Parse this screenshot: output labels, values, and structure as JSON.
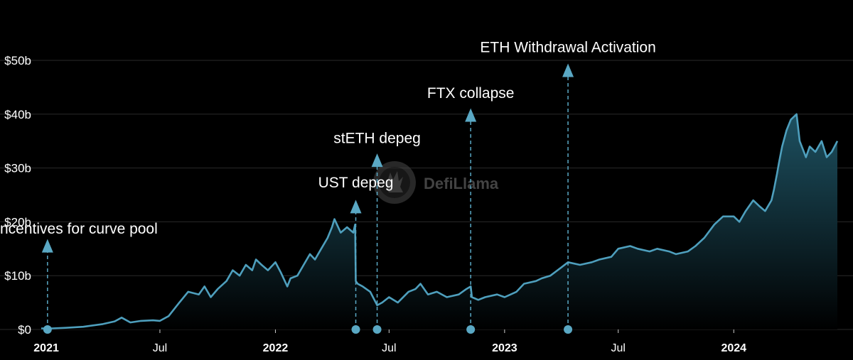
{
  "chart_data": {
    "type": "area",
    "title": "",
    "xlabel": "",
    "ylabel": "",
    "watermark": "DefiLlama",
    "x_range": [
      "2020-12-24",
      "2024-06-14"
    ],
    "ylim": [
      0,
      52
    ],
    "y_unit": "billions USD",
    "grid": true,
    "legend": "none",
    "colors": {
      "line": "#4e9fbd",
      "area_top": "#1f5566",
      "area_bottom": "#000000",
      "grid": "#2a2a2a",
      "marker": "#5aa8c4",
      "background": "#000000"
    },
    "y_ticks": [
      {
        "value": 0,
        "label": "$0"
      },
      {
        "value": 10,
        "label": "$10b"
      },
      {
        "value": 20,
        "label": "$20b"
      },
      {
        "value": 30,
        "label": "$30b"
      },
      {
        "value": 40,
        "label": "$40b"
      },
      {
        "value": 50,
        "label": "$50b"
      }
    ],
    "x_ticks": [
      {
        "date": "2021-01-01",
        "label": "2021",
        "bold": true
      },
      {
        "date": "2021-07-01",
        "label": "Jul",
        "bold": false
      },
      {
        "date": "2022-01-01",
        "label": "2022",
        "bold": true
      },
      {
        "date": "2022-07-01",
        "label": "Jul",
        "bold": false
      },
      {
        "date": "2023-01-01",
        "label": "2023",
        "bold": true
      },
      {
        "date": "2023-07-01",
        "label": "Jul",
        "bold": false
      },
      {
        "date": "2024-01-01",
        "label": "2024",
        "bold": true
      }
    ],
    "series": [
      {
        "x": [
          "2020-12-24",
          "2021-01-10",
          "2021-02-01",
          "2021-03-01",
          "2021-04-01",
          "2021-04-20",
          "2021-05-01",
          "2021-05-15",
          "2021-06-01",
          "2021-06-20",
          "2021-07-01",
          "2021-07-15",
          "2021-08-01",
          "2021-08-15",
          "2021-09-01",
          "2021-09-10",
          "2021-09-20",
          "2021-10-01",
          "2021-10-15",
          "2021-10-25",
          "2021-11-05",
          "2021-11-15",
          "2021-11-25",
          "2021-12-01",
          "2021-12-10",
          "2021-12-20",
          "2022-01-01",
          "2022-01-10",
          "2022-01-20",
          "2022-01-25",
          "2022-02-05",
          "2022-02-15",
          "2022-02-25",
          "2022-03-05",
          "2022-03-15",
          "2022-03-25",
          "2022-04-01",
          "2022-04-05",
          "2022-04-15",
          "2022-04-25",
          "2022-05-05",
          "2022-05-08",
          "2022-05-09",
          "2022-05-12",
          "2022-05-20",
          "2022-06-01",
          "2022-06-12",
          "2022-06-20",
          "2022-07-01",
          "2022-07-15",
          "2022-08-01",
          "2022-08-12",
          "2022-08-20",
          "2022-09-01",
          "2022-09-15",
          "2022-10-01",
          "2022-10-20",
          "2022-11-01",
          "2022-11-08",
          "2022-11-10",
          "2022-11-20",
          "2022-12-01",
          "2022-12-20",
          "2023-01-01",
          "2023-01-20",
          "2023-02-01",
          "2023-02-20",
          "2023-03-01",
          "2023-03-15",
          "2023-04-01",
          "2023-04-12",
          "2023-05-01",
          "2023-05-20",
          "2023-06-01",
          "2023-06-20",
          "2023-07-01",
          "2023-07-20",
          "2023-08-01",
          "2023-08-20",
          "2023-09-01",
          "2023-09-20",
          "2023-10-01",
          "2023-10-20",
          "2023-11-01",
          "2023-11-15",
          "2023-12-01",
          "2023-12-15",
          "2024-01-01",
          "2024-01-10",
          "2024-01-20",
          "2024-02-01",
          "2024-02-10",
          "2024-02-20",
          "2024-03-01",
          "2024-03-05",
          "2024-03-10",
          "2024-03-13",
          "2024-03-18",
          "2024-03-25",
          "2024-04-01",
          "2024-04-10",
          "2024-04-15",
          "2024-04-25",
          "2024-05-01",
          "2024-05-10",
          "2024-05-20",
          "2024-05-28",
          "2024-06-05",
          "2024-06-14"
        ],
        "y": [
          0.2,
          0.2,
          0.3,
          0.5,
          1.0,
          1.5,
          2.2,
          1.3,
          1.6,
          1.7,
          1.6,
          2.5,
          5.0,
          7.0,
          6.5,
          8.0,
          6.0,
          7.5,
          9.0,
          11.0,
          10.0,
          12.0,
          11.0,
          13.0,
          12.0,
          11.0,
          12.5,
          10.5,
          8.0,
          9.5,
          10.0,
          12.0,
          14.0,
          13.0,
          15.0,
          17.0,
          19.0,
          20.5,
          18.0,
          19.0,
          18.0,
          19.5,
          9.0,
          8.5,
          8.0,
          7.0,
          4.5,
          5.0,
          6.0,
          5.0,
          7.0,
          7.5,
          8.5,
          6.5,
          7.0,
          6.0,
          6.5,
          7.5,
          8.0,
          6.0,
          5.5,
          6.0,
          6.5,
          6.0,
          7.0,
          8.5,
          9.0,
          9.5,
          10.0,
          11.5,
          12.5,
          12.0,
          12.5,
          13.0,
          13.5,
          15.0,
          15.5,
          15.0,
          14.5,
          15.0,
          14.5,
          14.0,
          14.5,
          15.5,
          17.0,
          19.5,
          21.0,
          21.0,
          20.0,
          22.0,
          24.0,
          23.0,
          22.0,
          24.0,
          26.0,
          29.0,
          31.0,
          34.0,
          37.0,
          39.0,
          40.0,
          35.0,
          32.0,
          34.0,
          33.0,
          35.0,
          32.0,
          33.0,
          35.0
        ]
      }
    ],
    "annotations": [
      {
        "label": "ncentives for curve pool",
        "date": "2021-01-03",
        "arrow_top_value": 16.8,
        "label_value": 17.8
      },
      {
        "label": "UST depeg",
        "date": "2022-05-09",
        "arrow_top_value": 24.1,
        "label_value": 26.4
      },
      {
        "label": "stETH depeg",
        "date": "2022-06-12",
        "arrow_top_value": 32.7,
        "label_value": 34.6
      },
      {
        "label": "FTX collapse",
        "date": "2022-11-08",
        "arrow_top_value": 41.1,
        "label_value": 43.0
      },
      {
        "label": "ETH Withdrawal Activation",
        "date": "2023-04-12",
        "arrow_top_value": 49.4,
        "label_value": 51.5
      }
    ]
  }
}
